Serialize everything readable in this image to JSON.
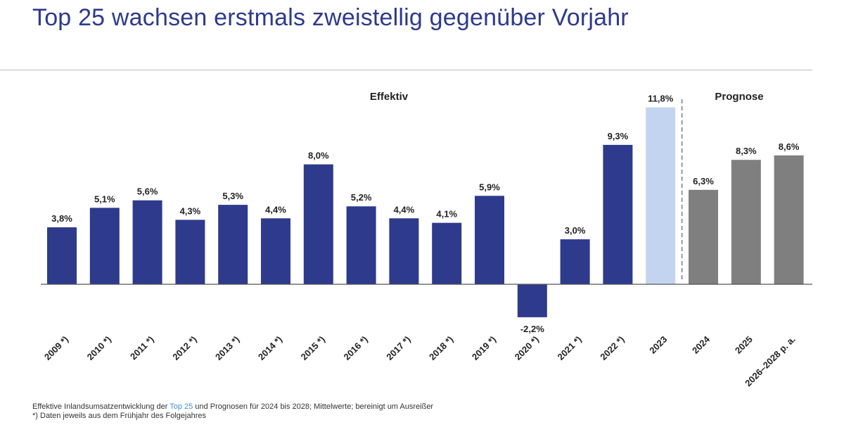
{
  "header": {
    "title": "Top 25 wachsen erstmals zweistellig gegenüber Vorjahr"
  },
  "footnotes": {
    "line1_before": "Effektive Inlandsumsatzentwicklung der ",
    "line1_link": "Top 25",
    "line1_after": " und Prognosen für 2024 bis 2028; Mittelwerte; bereinigt um Ausreißer",
    "line2": "*) Daten jeweils aus dem Frühjahr des Folgejahres"
  },
  "chart_data": {
    "type": "bar",
    "section_labels": {
      "actual": "Effektiv",
      "forecast": "Prognose"
    },
    "categories": [
      "2009 *)",
      "2010 *)",
      "2011 *)",
      "2012 *)",
      "2013 *)",
      "2014 *)",
      "2015 *)",
      "2016 *)",
      "2017 *)",
      "2018 *)",
      "2019 *)",
      "2020 *)",
      "2021 *)",
      "2022 *)",
      "2023",
      "2024",
      "2025",
      "2026–2028 p. a."
    ],
    "values": [
      3.8,
      5.1,
      5.6,
      4.3,
      5.3,
      4.4,
      8.0,
      5.2,
      4.4,
      4.1,
      5.9,
      -2.2,
      3.0,
      9.3,
      11.8,
      6.3,
      8.3,
      8.6
    ],
    "value_labels": [
      "3,8%",
      "5,1%",
      "5,6%",
      "4,3%",
      "5,3%",
      "4,4%",
      "8,0%",
      "5,2%",
      "4,4%",
      "4,1%",
      "5,9%",
      "-2,2%",
      "3,0%",
      "9,3%",
      "11,8%",
      "6,3%",
      "8,3%",
      "8,6%"
    ],
    "bar_kinds": [
      "actual",
      "actual",
      "actual",
      "actual",
      "actual",
      "actual",
      "actual",
      "actual",
      "actual",
      "actual",
      "actual",
      "actual",
      "actual",
      "actual",
      "highlight",
      "forecast",
      "forecast",
      "forecast"
    ],
    "colors": {
      "actual": "#2e3a8c",
      "highlight": "#c3d4f1",
      "forecast": "#7f7f7f",
      "divider": "#6b7aa8",
      "axis": "#555555"
    },
    "ylim": [
      -2.2,
      11.8
    ],
    "grid": false
  }
}
